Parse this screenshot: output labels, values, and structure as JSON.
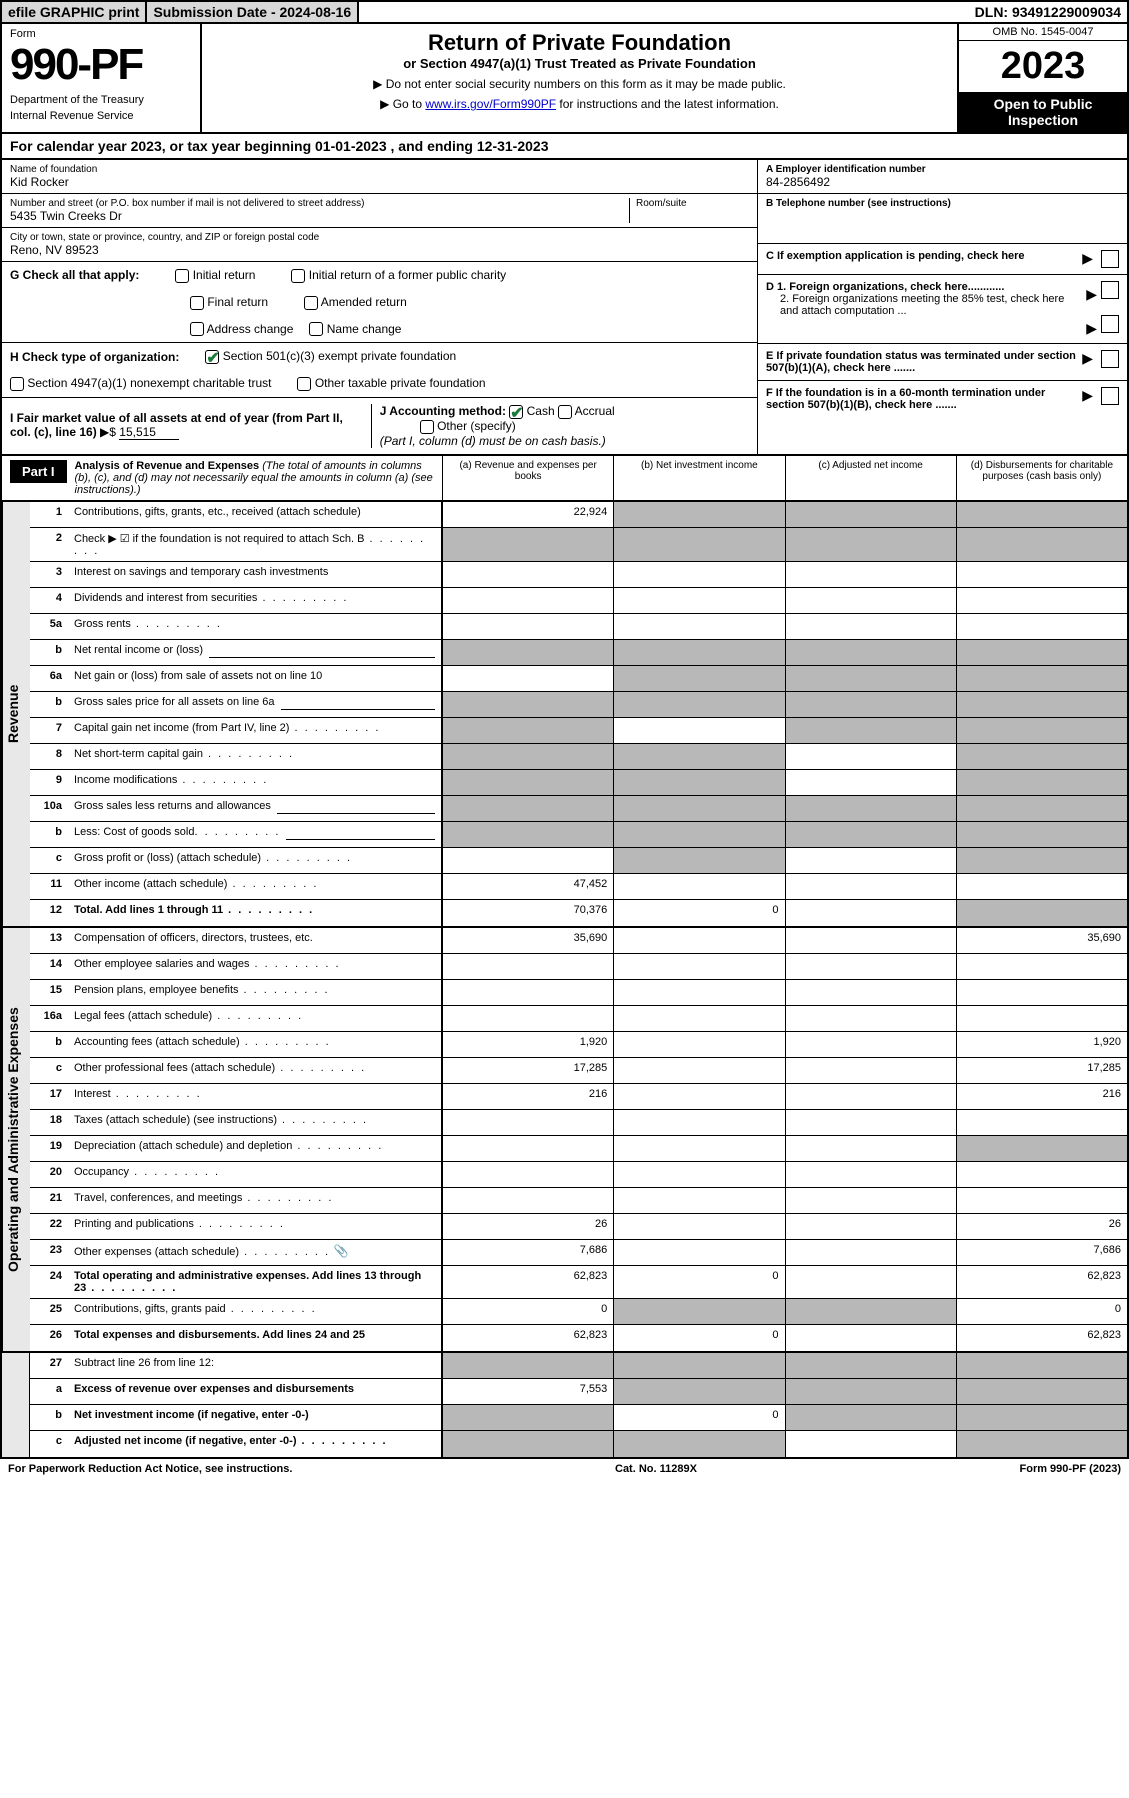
{
  "topbar": {
    "efile": "efile GRAPHIC print",
    "subdate_label": "Submission Date - 2024-08-16",
    "dln": "DLN: 93491229009034"
  },
  "header": {
    "form_label": "Form",
    "form_number": "990-PF",
    "dept1": "Department of the Treasury",
    "dept2": "Internal Revenue Service",
    "title": "Return of Private Foundation",
    "subtitle": "or Section 4947(a)(1) Trust Treated as Private Foundation",
    "note1": "▶ Do not enter social security numbers on this form as it may be made public.",
    "note2_pre": "▶ Go to ",
    "note2_link": "www.irs.gov/Form990PF",
    "note2_post": " for instructions and the latest information.",
    "omb": "OMB No. 1545-0047",
    "year": "2023",
    "open": "Open to Public Inspection"
  },
  "calyear": {
    "text_pre": "For calendar year 2023, or tax year beginning ",
    "begin": "01-01-2023",
    "mid": " , and ending ",
    "end": "12-31-2023"
  },
  "info": {
    "name_lbl": "Name of foundation",
    "name_val": "Kid Rocker",
    "addr_lbl": "Number and street (or P.O. box number if mail is not delivered to street address)",
    "addr_val": "5435 Twin Creeks Dr",
    "room_lbl": "Room/suite",
    "city_lbl": "City or town, state or province, country, and ZIP or foreign postal code",
    "city_val": "Reno, NV  89523",
    "ein_lbl": "A Employer identification number",
    "ein_val": "84-2856492",
    "phone_lbl": "B Telephone number (see instructions)",
    "c_lbl": "C If exemption application is pending, check here",
    "d1": "D 1. Foreign organizations, check here............",
    "d2": "2. Foreign organizations meeting the 85% test, check here and attach computation ...",
    "e_lbl": "E  If private foundation status was terminated under section 507(b)(1)(A), check here .......",
    "f_lbl": "F  If the foundation is in a 60-month termination under section 507(b)(1)(B), check here .......",
    "g_lbl": "G Check all that apply:",
    "g_opts": [
      "Initial return",
      "Initial return of a former public charity",
      "Final return",
      "Amended return",
      "Address change",
      "Name change"
    ],
    "h_lbl": "H Check type of organization:",
    "h_opt1": "Section 501(c)(3) exempt private foundation",
    "h_opt2": "Section 4947(a)(1) nonexempt charitable trust",
    "h_opt3": "Other taxable private foundation",
    "i_lbl": "I Fair market value of all assets at end of year (from Part II, col. (c), line 16)",
    "i_val": "15,515",
    "j_lbl": "J Accounting method:",
    "j_cash": "Cash",
    "j_accrual": "Accrual",
    "j_other": "Other (specify)",
    "j_note": "(Part I, column (d) must be on cash basis.)"
  },
  "part1": {
    "label": "Part I",
    "title": "Analysis of Revenue and Expenses",
    "title_note": " (The total of amounts in columns (b), (c), and (d) may not necessarily equal the amounts in column (a) (see instructions).)",
    "col_a": "(a)   Revenue and expenses per books",
    "col_b": "(b)   Net investment income",
    "col_c": "(c)   Adjusted net income",
    "col_d": "(d)   Disbursements for charitable purposes (cash basis only)"
  },
  "sections": {
    "revenue": "Revenue",
    "expenses": "Operating and Administrative Expenses"
  },
  "rows": [
    {
      "n": "1",
      "d": "Contributions, gifts, grants, etc., received (attach schedule)",
      "a": "22,924",
      "shade": [
        "b",
        "c",
        "d"
      ]
    },
    {
      "n": "2",
      "d": "Check ▶ ☑ if the foundation is not required to attach Sch. B",
      "dots": true,
      "shade": [
        "a",
        "b",
        "c",
        "d"
      ]
    },
    {
      "n": "3",
      "d": "Interest on savings and temporary cash investments"
    },
    {
      "n": "4",
      "d": "Dividends and interest from securities",
      "dots": true
    },
    {
      "n": "5a",
      "d": "Gross rents",
      "dots": true
    },
    {
      "n": "b",
      "d": "Net rental income or (loss)",
      "shade": [
        "a",
        "b",
        "c",
        "d"
      ],
      "inline": true
    },
    {
      "n": "6a",
      "d": "Net gain or (loss) from sale of assets not on line 10",
      "shade": [
        "b",
        "c",
        "d"
      ]
    },
    {
      "n": "b",
      "d": "Gross sales price for all assets on line 6a",
      "shade": [
        "a",
        "b",
        "c",
        "d"
      ],
      "inline": true
    },
    {
      "n": "7",
      "d": "Capital gain net income (from Part IV, line 2)",
      "dots": true,
      "shade": [
        "a",
        "c",
        "d"
      ]
    },
    {
      "n": "8",
      "d": "Net short-term capital gain",
      "dots": true,
      "shade": [
        "a",
        "b",
        "d"
      ]
    },
    {
      "n": "9",
      "d": "Income modifications",
      "dots": true,
      "shade": [
        "a",
        "b",
        "d"
      ]
    },
    {
      "n": "10a",
      "d": "Gross sales less returns and allowances",
      "shade": [
        "a",
        "b",
        "c",
        "d"
      ],
      "inline": true
    },
    {
      "n": "b",
      "d": "Less: Cost of goods sold",
      "dots": true,
      "shade": [
        "a",
        "b",
        "c",
        "d"
      ],
      "inline": true
    },
    {
      "n": "c",
      "d": "Gross profit or (loss) (attach schedule)",
      "dots": true,
      "shade": [
        "b",
        "d"
      ]
    },
    {
      "n": "11",
      "d": "Other income (attach schedule)",
      "dots": true,
      "a": "47,452"
    },
    {
      "n": "12",
      "d": "Total. Add lines 1 through 11",
      "dots": true,
      "bold": true,
      "a": "70,376",
      "b": "0",
      "shade": [
        "d"
      ]
    }
  ],
  "exp_rows": [
    {
      "n": "13",
      "d": "Compensation of officers, directors, trustees, etc.",
      "a": "35,690",
      "dd": "35,690"
    },
    {
      "n": "14",
      "d": "Other employee salaries and wages",
      "dots": true
    },
    {
      "n": "15",
      "d": "Pension plans, employee benefits",
      "dots": true
    },
    {
      "n": "16a",
      "d": "Legal fees (attach schedule)",
      "dots": true
    },
    {
      "n": "b",
      "d": "Accounting fees (attach schedule)",
      "dots": true,
      "a": "1,920",
      "dd": "1,920"
    },
    {
      "n": "c",
      "d": "Other professional fees (attach schedule)",
      "dots": true,
      "a": "17,285",
      "dd": "17,285"
    },
    {
      "n": "17",
      "d": "Interest",
      "dots": true,
      "a": "216",
      "dd": "216"
    },
    {
      "n": "18",
      "d": "Taxes (attach schedule) (see instructions)",
      "dots": true
    },
    {
      "n": "19",
      "d": "Depreciation (attach schedule) and depletion",
      "dots": true,
      "shade": [
        "d"
      ]
    },
    {
      "n": "20",
      "d": "Occupancy",
      "dots": true
    },
    {
      "n": "21",
      "d": "Travel, conferences, and meetings",
      "dots": true
    },
    {
      "n": "22",
      "d": "Printing and publications",
      "dots": true,
      "a": "26",
      "dd": "26"
    },
    {
      "n": "23",
      "d": "Other expenses (attach schedule)",
      "dots": true,
      "a": "7,686",
      "dd": "7,686",
      "attach": true
    },
    {
      "n": "24",
      "d": "Total operating and administrative expenses. Add lines 13 through 23",
      "dots": true,
      "bold": true,
      "a": "62,823",
      "b": "0",
      "dd": "62,823"
    },
    {
      "n": "25",
      "d": "Contributions, gifts, grants paid",
      "dots": true,
      "a": "0",
      "dd": "0",
      "shade": [
        "b",
        "c"
      ]
    },
    {
      "n": "26",
      "d": "Total expenses and disbursements. Add lines 24 and 25",
      "bold": true,
      "a": "62,823",
      "b": "0",
      "dd": "62,823"
    }
  ],
  "final_rows": [
    {
      "n": "27",
      "d": "Subtract line 26 from line 12:",
      "shade": [
        "a",
        "b",
        "c",
        "d"
      ]
    },
    {
      "n": "a",
      "d": "Excess of revenue over expenses and disbursements",
      "bold": true,
      "a": "7,553",
      "shade": [
        "b",
        "c",
        "d"
      ]
    },
    {
      "n": "b",
      "d": "Net investment income (if negative, enter -0-)",
      "bold": true,
      "b": "0",
      "shade": [
        "a",
        "c",
        "d"
      ]
    },
    {
      "n": "c",
      "d": "Adjusted net income (if negative, enter -0-)",
      "bold": true,
      "dots": true,
      "shade": [
        "a",
        "b",
        "d"
      ]
    }
  ],
  "footer": {
    "left": "For Paperwork Reduction Act Notice, see instructions.",
    "mid": "Cat. No. 11289X",
    "right": "Form 990-PF (2023)"
  },
  "colors": {
    "shade": "#b8b8b8",
    "side": "#e8e8e8",
    "link": "#0000cc",
    "check": "#1a7a3a"
  }
}
